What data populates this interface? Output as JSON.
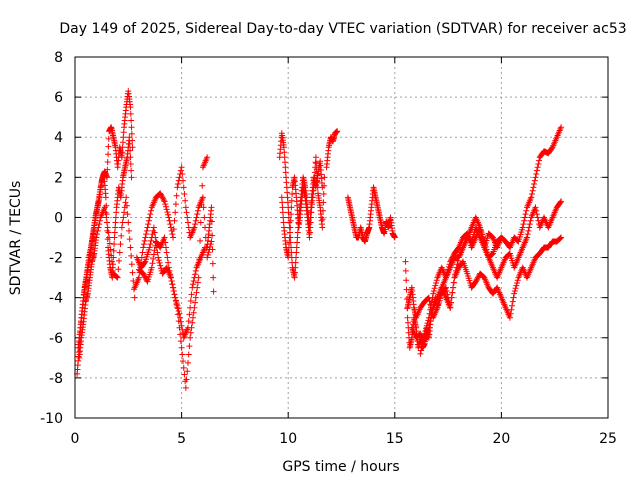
{
  "chart_data": {
    "type": "scatter",
    "title": "Day 149 of 2025, Sidereal Day-to-day VTEC variation (SDTVAR) for receiver ac53",
    "xlabel": "GPS time / hours",
    "ylabel": "SDTVAR / TECUs",
    "xlim": [
      0,
      25
    ],
    "ylim": [
      -10,
      8
    ],
    "xticks": [
      0,
      5,
      10,
      15,
      20,
      25
    ],
    "yticks": [
      -10,
      -8,
      -6,
      -4,
      -2,
      0,
      2,
      4,
      6,
      8
    ],
    "grid": true,
    "marker": "+",
    "color": "#ff0000",
    "series": [
      {
        "name": "SDTVAR",
        "segments": [
          {
            "x": [
              0.1,
              0.2,
              0.3,
              0.4,
              0.5,
              0.6,
              0.7,
              0.8,
              0.9,
              1.0,
              1.1,
              1.2,
              1.3,
              1.4,
              1.5,
              1.6,
              1.7,
              1.8,
              1.9,
              2.0,
              2.1,
              2.2,
              2.3,
              2.4,
              2.5,
              2.6,
              2.7
            ],
            "y": [
              -7.8,
              -6.5,
              -5.0,
              -4.0,
              -3.2,
              -2.5,
              -2.0,
              -1.2,
              -0.5,
              0.2,
              0.8,
              1.5,
              2.0,
              2.3,
              2.0,
              4.3,
              4.5,
              4.0,
              3.5,
              2.5,
              3.5,
              3.0,
              4.5,
              5.5,
              6.3,
              5.5,
              3.5
            ]
          },
          {
            "x": [
              0.15,
              0.25,
              0.35,
              0.45,
              0.55,
              0.65,
              0.75,
              0.85,
              0.95,
              1.05,
              1.15,
              1.25,
              1.35,
              1.45,
              1.55,
              1.65,
              1.75,
              1.85,
              1.95,
              2.05,
              2.15,
              2.25,
              2.35,
              2.45,
              2.55,
              2.65
            ],
            "y": [
              -6.5,
              -5.5,
              -4.5,
              -3.5,
              -3.0,
              -2.0,
              -1.5,
              -0.8,
              0.0,
              0.5,
              1.0,
              1.8,
              2.2,
              1.0,
              -1.5,
              -2.5,
              -3.0,
              -1.0,
              0.5,
              1.5,
              1.0,
              2.0,
              2.5,
              3.0,
              4.0,
              2.0
            ]
          },
          {
            "x": [
              0.2,
              0.3,
              0.4,
              0.5,
              0.6,
              0.7,
              0.8,
              0.9,
              1.0,
              1.2,
              1.4,
              1.6,
              1.8,
              2.0,
              2.2,
              2.4,
              2.6,
              2.8
            ],
            "y": [
              -7.0,
              -6.0,
              -5.2,
              -4.2,
              -3.8,
              -3.0,
              -2.2,
              -1.8,
              -1.0,
              0.0,
              0.5,
              -1.0,
              -2.8,
              -3.0,
              -0.5,
              1.0,
              -1.5,
              -4.0
            ]
          },
          {
            "x": [
              2.8,
              3.0,
              3.2,
              3.4,
              3.6,
              3.8,
              4.0,
              4.2,
              4.4,
              4.6,
              4.8,
              5.0,
              5.2,
              5.4,
              5.6,
              5.8,
              6.0,
              6.2,
              6.4
            ],
            "y": [
              -3.5,
              -3.0,
              -1.5,
              -0.5,
              0.5,
              1.0,
              1.2,
              0.8,
              0.0,
              -1.0,
              1.5,
              2.5,
              0.5,
              -1.0,
              -0.5,
              0.5,
              1.0,
              -2.0,
              -1.2
            ]
          },
          {
            "x": [
              2.9,
              3.1,
              3.3,
              3.5,
              3.7,
              3.9,
              4.1,
              4.3,
              4.5,
              4.7,
              4.9,
              5.1,
              5.3,
              5.5,
              5.7,
              5.9,
              6.1
            ],
            "y": [
              -2.0,
              -2.5,
              -2.2,
              -1.5,
              -0.5,
              -2.0,
              -2.8,
              -2.5,
              -3.0,
              -4.0,
              -4.8,
              -6.0,
              -5.5,
              -3.5,
              -2.5,
              -2.0,
              -1.5
            ]
          },
          {
            "x": [
              3.0,
              3.2,
              3.4,
              3.6,
              3.8,
              4.0,
              4.2,
              4.4,
              4.6,
              4.8,
              5.0,
              5.2,
              5.4,
              5.6,
              5.8,
              6.0,
              6.2
            ],
            "y": [
              -2.6,
              -2.8,
              -3.2,
              -2.5,
              -1.2,
              -1.5,
              -1.0,
              -2.5,
              -3.5,
              -4.5,
              -6.5,
              -8.5,
              -6.0,
              -4.5,
              -3.0,
              2.5,
              3.0
            ]
          },
          {
            "x": [
              6.2,
              6.3,
              6.4,
              6.5
            ],
            "y": [
              -1.5,
              -0.5,
              0.5,
              -3.7
            ]
          },
          {
            "x": [
              9.6,
              9.7,
              9.8,
              9.9,
              10.0,
              10.1,
              10.2,
              10.3,
              10.4,
              10.5,
              10.6,
              10.7,
              10.8,
              10.9,
              11.0,
              11.1,
              11.2,
              11.3,
              11.4,
              11.5,
              11.6
            ],
            "y": [
              3.0,
              4.2,
              3.5,
              2.0,
              0.5,
              -1.0,
              -2.5,
              -3.0,
              -1.5,
              0.0,
              1.0,
              2.0,
              1.5,
              0.5,
              -0.5,
              1.0,
              2.0,
              1.5,
              2.2,
              2.8,
              1.5
            ]
          },
          {
            "x": [
              9.7,
              9.8,
              9.9,
              10.0,
              10.1,
              10.2,
              10.3,
              10.4,
              10.5,
              10.6,
              10.7,
              10.8,
              10.9,
              11.0,
              11.1,
              11.2,
              11.3,
              11.4,
              11.5,
              11.6,
              11.7
            ],
            "y": [
              1.0,
              -0.5,
              -1.5,
              -2.0,
              -0.5,
              1.5,
              2.0,
              0.8,
              -0.5,
              0.5,
              1.5,
              1.0,
              0.0,
              -1.0,
              0.5,
              1.5,
              3.0,
              1.2,
              0.5,
              -0.5,
              2.0
            ]
          },
          {
            "x": [
              11.8,
              11.9,
              12.0,
              12.1,
              12.2,
              12.3
            ],
            "y": [
              2.5,
              3.5,
              4.0,
              3.8,
              4.2,
              4.3
            ]
          },
          {
            "x": [
              12.8,
              12.9,
              13.0,
              13.1,
              13.2,
              13.3,
              13.4,
              13.5,
              13.6,
              13.7,
              13.8,
              13.9,
              14.0,
              14.1,
              14.2,
              14.3,
              14.4,
              14.5,
              14.6,
              14.7,
              14.8,
              14.9,
              15.0
            ],
            "y": [
              1.0,
              0.5,
              0.0,
              -0.5,
              -1.0,
              -1.0,
              -0.5,
              -1.0,
              -1.2,
              -0.8,
              -0.5,
              0.5,
              1.5,
              1.0,
              0.5,
              0.0,
              -0.5,
              -0.8,
              -0.2,
              -0.5,
              0.0,
              -0.8,
              -1.0
            ]
          },
          {
            "x": [
              15.5,
              15.6,
              15.7,
              15.8,
              15.9,
              16.0,
              16.1,
              16.2,
              16.3,
              16.4,
              16.5,
              16.6,
              16.7,
              16.8,
              16.9,
              17.0,
              17.2,
              17.4,
              17.6,
              17.8,
              18.0,
              18.2,
              18.4,
              18.6,
              18.8,
              19.0,
              19.2,
              19.4,
              19.6,
              19.8,
              20.0,
              20.2,
              20.4,
              20.6,
              20.8,
              21.0,
              21.2,
              21.4,
              21.6,
              21.8,
              22.0,
              22.2,
              22.4,
              22.6,
              22.8
            ],
            "y": [
              -2.2,
              -5.0,
              -6.5,
              -6.0,
              -5.0,
              -5.5,
              -6.5,
              -6.0,
              -6.5,
              -6.3,
              -5.5,
              -6.0,
              -5.0,
              -4.5,
              -4.0,
              -4.5,
              -3.5,
              -3.0,
              -2.5,
              -2.0,
              -2.0,
              -1.5,
              -1.0,
              -1.2,
              -0.5,
              -1.0,
              -1.5,
              -0.8,
              -1.0,
              -1.5,
              -1.0,
              -1.2,
              -1.5,
              -1.0,
              -1.2,
              -0.5,
              0.5,
              1.0,
              2.0,
              3.0,
              3.3,
              3.2,
              3.5,
              4.0,
              4.5
            ]
          },
          {
            "x": [
              15.6,
              15.7,
              15.8,
              15.9,
              16.0,
              16.2,
              16.4,
              16.6,
              16.8,
              17.0,
              17.2,
              17.4,
              17.6,
              17.8,
              18.0,
              18.2,
              18.4,
              18.6,
              18.8,
              19.0,
              19.2,
              19.4,
              19.6,
              19.8,
              20.0,
              20.2,
              20.4,
              20.6,
              20.8,
              21.0,
              21.2,
              21.4,
              21.6,
              21.8,
              22.0,
              22.2,
              22.4,
              22.6,
              22.8
            ],
            "y": [
              -4.5,
              -4.0,
              -3.5,
              -4.5,
              -5.0,
              -4.5,
              -4.2,
              -4.0,
              -5.0,
              -4.5,
              -3.8,
              -3.5,
              -4.5,
              -3.0,
              -2.0,
              -1.5,
              -1.0,
              -0.5,
              0.0,
              -0.5,
              -1.2,
              -2.0,
              -2.5,
              -3.0,
              -2.5,
              -2.0,
              -1.8,
              -2.5,
              -2.0,
              -1.5,
              -1.0,
              0.0,
              0.5,
              -0.5,
              0.0,
              -0.5,
              0.0,
              0.5,
              0.8
            ]
          },
          {
            "x": [
              15.8,
              16.0,
              16.2,
              16.4,
              16.6,
              16.8,
              17.0,
              17.2,
              17.4,
              17.6,
              17.8,
              18.0,
              18.2,
              18.4,
              18.6,
              18.8,
              19.0,
              19.2,
              19.4,
              19.6,
              19.8,
              20.0,
              20.2,
              20.4,
              20.6,
              20.8,
              21.0,
              21.2,
              21.4,
              21.6,
              21.8,
              22.0,
              22.2,
              22.4,
              22.6,
              22.8
            ],
            "y": [
              -5.5,
              -6.0,
              -5.8,
              -6.2,
              -5.5,
              -4.5,
              -4.0,
              -3.5,
              -4.0,
              -4.5,
              -3.0,
              -2.5,
              -2.2,
              -2.8,
              -3.5,
              -3.2,
              -2.8,
              -3.0,
              -3.5,
              -3.8,
              -3.5,
              -4.0,
              -4.5,
              -5.0,
              -3.8,
              -3.0,
              -2.5,
              -3.0,
              -2.5,
              -2.0,
              -1.8,
              -1.5,
              -1.5,
              -1.2,
              -1.2,
              -1.0
            ]
          },
          {
            "x": [
              16.2,
              16.4,
              16.6,
              16.8,
              17.0,
              17.2,
              17.4,
              17.6,
              17.8,
              18.0,
              18.2,
              18.4,
              18.6,
              18.8,
              19.0,
              19.2,
              19.4,
              19.6,
              19.8,
              20.0
            ],
            "y": [
              -6.8,
              -5.8,
              -5.0,
              -3.8,
              -3.0,
              -2.5,
              -3.0,
              -2.2,
              -1.8,
              -1.5,
              -1.0,
              -0.8,
              -1.5,
              -1.0,
              -0.5,
              -1.5,
              -2.0,
              -1.8,
              -1.2,
              -1.0
            ]
          }
        ]
      }
    ]
  }
}
